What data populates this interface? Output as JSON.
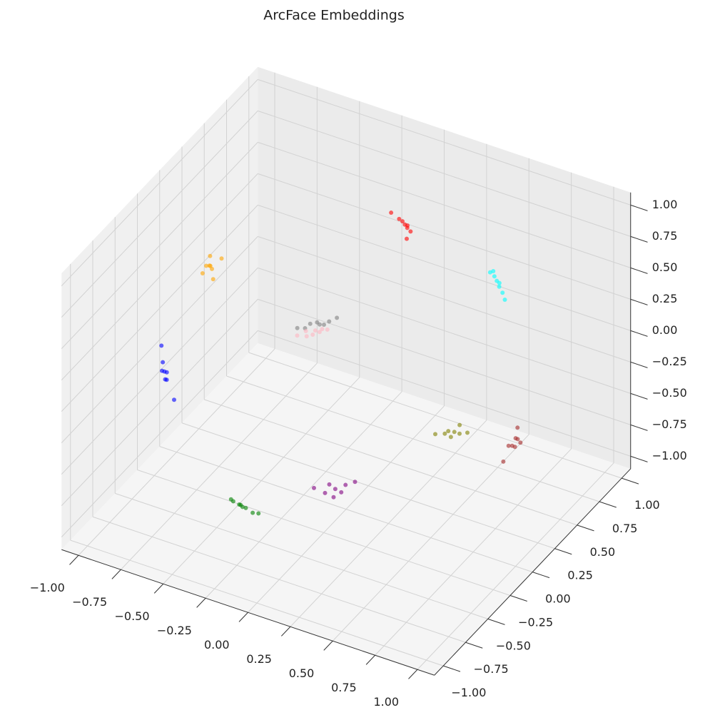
{
  "chart_data": {
    "type": "scatter3d",
    "title": "ArcFace Embeddings",
    "grid": true,
    "xlim": [
      -1.1,
      1.1
    ],
    "ylim": [
      -1.1,
      1.1
    ],
    "zlim": [
      -1.1,
      1.1
    ],
    "xticks": [
      {
        "value": -1,
        "label": "−1.00"
      },
      {
        "value": -0.75,
        "label": "−0.75"
      },
      {
        "value": -0.5,
        "label": "−0.50"
      },
      {
        "value": -0.25,
        "label": "−0.25"
      },
      {
        "value": 0,
        "label": "0.00"
      },
      0.25,
      {
        "value": 0.5,
        "label": "0.50"
      },
      0.75,
      {
        "value": 1,
        "label": "1.00"
      }
    ],
    "yticks": [
      {
        "value": -1,
        "label": "−1.00"
      },
      {
        "value": -0.75,
        "label": "−0.75"
      },
      {
        "value": -0.5,
        "label": "−0.50"
      },
      {
        "value": -0.25,
        "label": "−0.25"
      },
      {
        "value": 0,
        "label": "0.00"
      },
      0.25,
      {
        "value": 0.5,
        "label": "0.50"
      },
      0.75,
      {
        "value": 1,
        "label": "1.00"
      }
    ],
    "zticks": [
      {
        "value": -1,
        "label": "−1.00"
      },
      {
        "value": -0.75,
        "label": "−0.75"
      },
      {
        "value": -0.5,
        "label": "−0.50"
      },
      {
        "value": -0.25,
        "label": "−0.25"
      },
      {
        "value": 0,
        "label": "0.00"
      },
      0.25,
      {
        "value": 0.5,
        "label": "0.50"
      },
      0.75,
      {
        "value": 1,
        "label": "1.00"
      }
    ],
    "series": [
      {
        "color": "#808080",
        "x": [
          -0.55,
          -0.52,
          -0.58,
          -0.5,
          -0.6,
          -0.54,
          -0.47,
          -0.63
        ],
        "y": [
          0.72,
          0.74,
          0.7,
          0.76,
          0.68,
          0.73,
          0.79,
          0.65
        ],
        "z": [
          -0.4,
          -0.42,
          -0.41,
          -0.4,
          -0.44,
          -0.42,
          -0.38,
          -0.43
        ]
      },
      {
        "color": "#ffb6c1",
        "x": [
          -0.56,
          -0.53,
          -0.59,
          -0.55,
          -0.58,
          -0.5,
          -0.62,
          -0.52
        ],
        "y": [
          0.69,
          0.71,
          0.67,
          0.7,
          0.66,
          0.74,
          0.63,
          0.72
        ],
        "z": [
          -0.48,
          -0.46,
          -0.45,
          -0.45,
          -0.48,
          -0.45,
          -0.47,
          -0.44
        ]
      },
      {
        "color": "#ff0000",
        "x": [
          0.11,
          0.14,
          0.08,
          0.17,
          0.05,
          0.12,
          0.2,
          -0.05
        ],
        "y": [
          0.45,
          0.42,
          0.48,
          0.4,
          0.5,
          0.46,
          0.3,
          0.6
        ],
        "z": [
          0.88,
          0.89,
          0.87,
          0.89,
          0.86,
          0.87,
          0.92,
          0.79
        ]
      },
      {
        "color": "#00ffff",
        "x": [
          0.6,
          0.63,
          0.57,
          0.66,
          0.55,
          0.61,
          0.7,
          0.5
        ],
        "y": [
          0.55,
          0.52,
          0.58,
          0.5,
          0.57,
          0.56,
          0.45,
          0.7
        ],
        "z": [
          0.58,
          0.57,
          0.58,
          0.55,
          0.61,
          0.56,
          0.55,
          0.5
        ]
      },
      {
        "color": "#ffa500",
        "x": [
          -0.69,
          -0.66,
          -0.72,
          -0.64,
          -0.71,
          -0.68,
          -0.75,
          -0.6
        ],
        "y": [
          -0.22,
          -0.25,
          -0.2,
          -0.18,
          -0.26,
          -0.23,
          -0.1,
          -0.35
        ],
        "z": [
          0.69,
          0.7,
          0.66,
          0.74,
          0.65,
          0.7,
          0.65,
          0.72
        ]
      },
      {
        "color": "#0000ff",
        "x": [
          -0.73,
          -0.7,
          -0.76,
          -0.72,
          -0.75,
          -0.69,
          -0.8,
          -0.62
        ],
        "y": [
          -0.65,
          -0.68,
          -0.62,
          -0.66,
          -0.63,
          -0.7,
          -0.55,
          -0.75
        ],
        "z": [
          0.15,
          0.18,
          0.12,
          0.1,
          0.2,
          0.14,
          0.25,
          0.05
        ]
      },
      {
        "color": "#808000",
        "x": [
          0.86,
          0.84,
          0.88,
          0.85,
          0.87,
          0.83,
          0.9,
          0.8
        ],
        "y": [
          -0.42,
          -0.45,
          -0.4,
          -0.44,
          -0.38,
          -0.47,
          -0.35,
          -0.52
        ],
        "z": [
          0.22,
          0.24,
          0.2,
          0.19,
          0.25,
          0.23,
          0.18,
          0.25
        ]
      },
      {
        "color": "#a52a2a",
        "x": [
          0.98,
          0.97,
          0.98,
          0.96,
          0.99,
          0.97,
          0.95,
          0.98
        ],
        "y": [
          0.0,
          0.05,
          -0.04,
          0.1,
          0.02,
          -0.08,
          0.15,
          0.06
        ],
        "z": [
          -0.15,
          -0.2,
          -0.12,
          -0.18,
          -0.1,
          -0.22,
          -0.25,
          -0.05
        ]
      },
      {
        "color": "#800080",
        "x": [
          0.41,
          0.38,
          0.44,
          0.36,
          0.46,
          0.4,
          0.3,
          0.5
        ],
        "y": [
          -0.9,
          -0.91,
          -0.89,
          -0.92,
          -0.88,
          -0.9,
          -0.93,
          -0.85
        ],
        "z": [
          -0.08,
          -0.05,
          -0.1,
          -0.12,
          -0.04,
          -0.15,
          -0.1,
          -0.02
        ]
      },
      {
        "color": "#008000",
        "x": [
          -0.19,
          -0.16,
          -0.22,
          -0.13,
          -0.25,
          -0.18,
          -0.08,
          -0.3
        ],
        "y": [
          -0.8,
          -0.82,
          -0.78,
          -0.8,
          -0.79,
          -0.84,
          -0.83,
          -0.72
        ],
        "z": [
          -0.57,
          -0.55,
          -0.58,
          -0.59,
          -0.56,
          -0.52,
          -0.55,
          -0.62
        ]
      }
    ]
  }
}
